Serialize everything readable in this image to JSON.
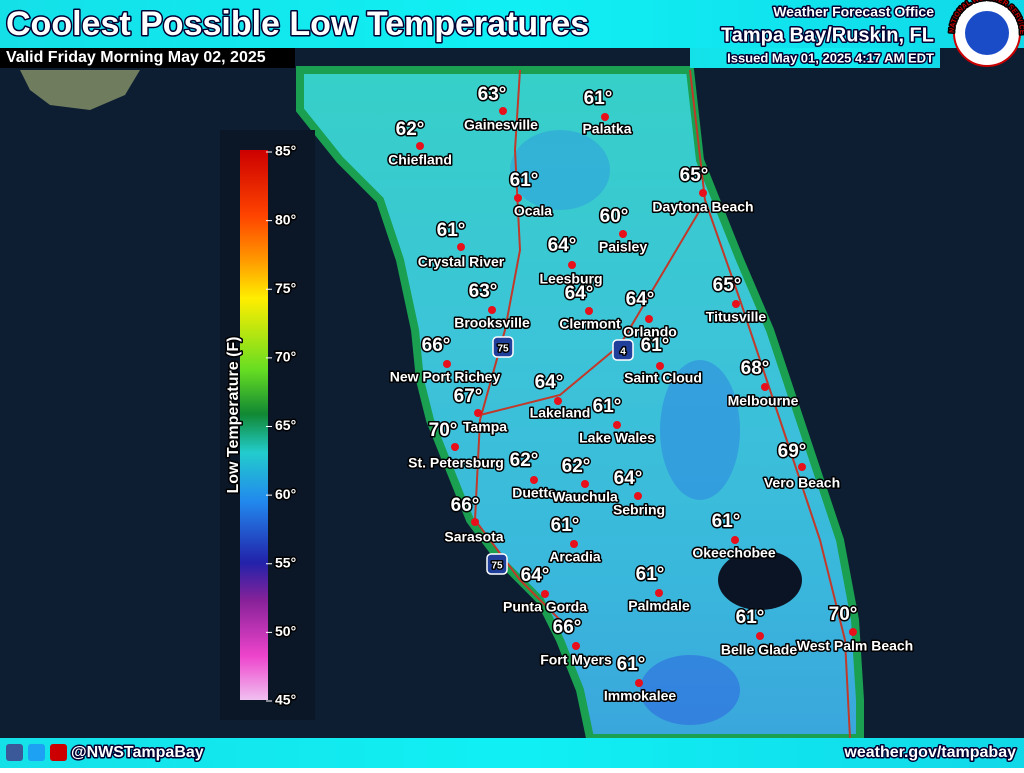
{
  "header": {
    "title": "Coolest Possible Low Temperatures",
    "subtitle": "Valid Friday Morning May 02, 2025",
    "office": "Weather Forecast Office",
    "location": "Tampa Bay/Ruskin, FL",
    "issued": "Issued May 01, 2025 4:17 AM EDT",
    "logo_text": "NATIONAL WEATHER SERVICE"
  },
  "legend": {
    "label": "Low Temperature (F)",
    "ticks": [
      "85°",
      "80°",
      "75°",
      "70°",
      "65°",
      "60°",
      "55°",
      "50°",
      "45°"
    ]
  },
  "cities": [
    {
      "name": "Gainesville",
      "temp": "63°"
    },
    {
      "name": "Palatka",
      "temp": "61°"
    },
    {
      "name": "Chiefland",
      "temp": "62°"
    },
    {
      "name": "Daytona Beach",
      "temp": "65°"
    },
    {
      "name": "Ocala",
      "temp": "61°"
    },
    {
      "name": "Paisley",
      "temp": "60°"
    },
    {
      "name": "Crystal River",
      "temp": "61°"
    },
    {
      "name": "Leesburg",
      "temp": "64°"
    },
    {
      "name": "Titusville",
      "temp": "65°"
    },
    {
      "name": "Brooksville",
      "temp": "63°"
    },
    {
      "name": "Clermont",
      "temp": "64°"
    },
    {
      "name": "Orlando",
      "temp": "64°"
    },
    {
      "name": "New Port Richey",
      "temp": "66°"
    },
    {
      "name": "Saint Cloud",
      "temp": "61°"
    },
    {
      "name": "Melbourne",
      "temp": "68°"
    },
    {
      "name": "Lakeland",
      "temp": "64°"
    },
    {
      "name": "Tampa",
      "temp": "67°"
    },
    {
      "name": "Lake Wales",
      "temp": "61°"
    },
    {
      "name": "St. Petersburg",
      "temp": "70°"
    },
    {
      "name": "Duette",
      "temp": "62°"
    },
    {
      "name": "Wauchula",
      "temp": "62°"
    },
    {
      "name": "Sebring",
      "temp": "64°"
    },
    {
      "name": "Vero Beach",
      "temp": "69°"
    },
    {
      "name": "Sarasota",
      "temp": "66°"
    },
    {
      "name": "Okeechobee",
      "temp": "61°"
    },
    {
      "name": "Arcadia",
      "temp": "61°"
    },
    {
      "name": "Punta Gorda",
      "temp": "64°"
    },
    {
      "name": "Palmdale",
      "temp": "61°"
    },
    {
      "name": "West Palm Beach",
      "temp": "70°"
    },
    {
      "name": "Belle Glade",
      "temp": "61°"
    },
    {
      "name": "Fort Myers",
      "temp": "66°"
    },
    {
      "name": "Immokalee",
      "temp": "61°"
    }
  ],
  "shields": [
    "75",
    "4",
    "75"
  ],
  "footer": {
    "social": "@NWSTampaBay",
    "url": "weather.gov/tampabay"
  }
}
